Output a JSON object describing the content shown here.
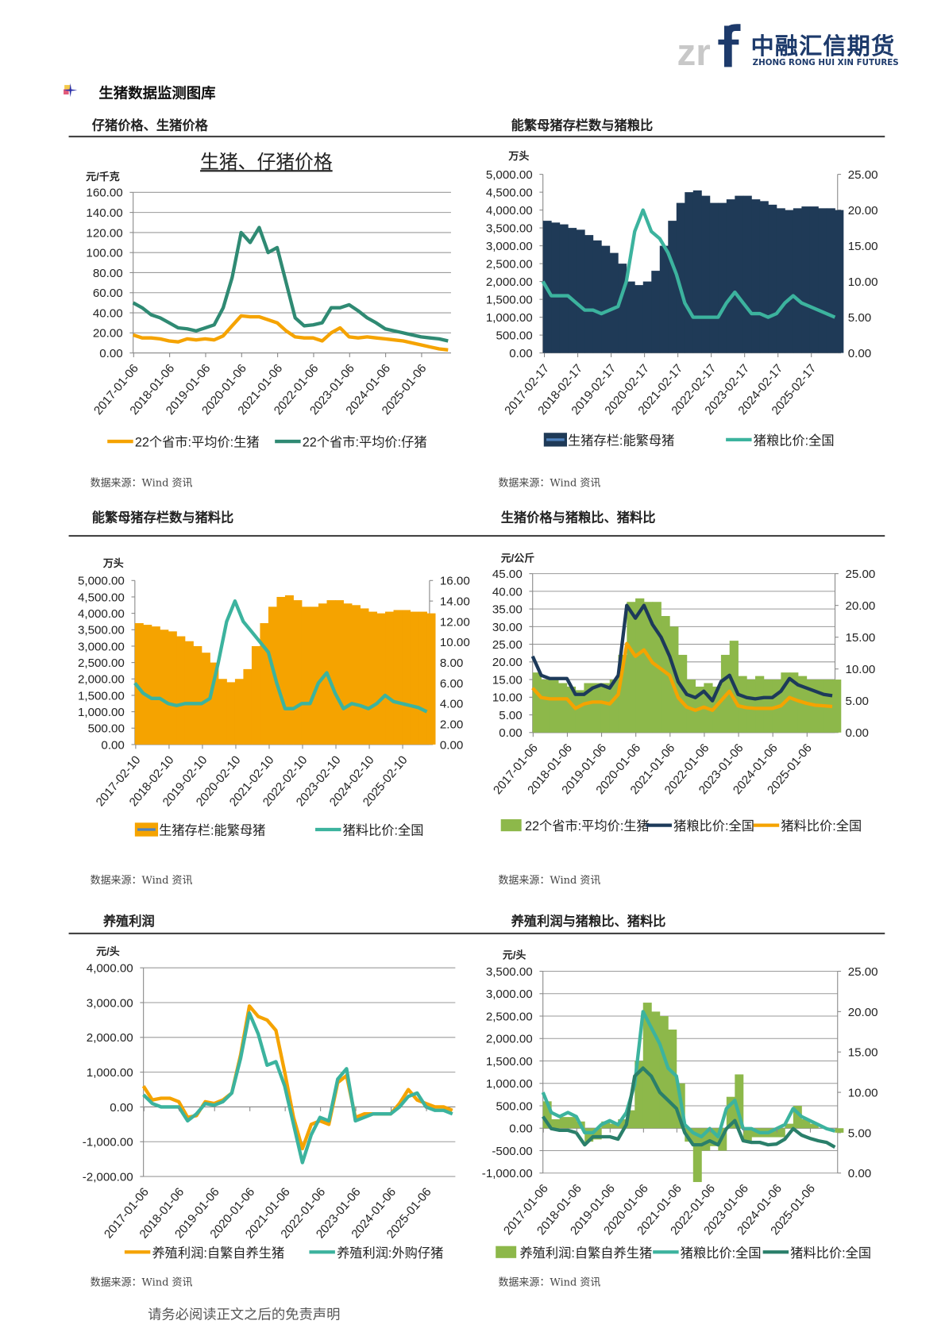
{
  "header": {
    "logo_mark": "zrf",
    "logo_cn": "中融汇信期货",
    "logo_en": "ZHONG RONG HUI XIN FUTURES",
    "section_title": "生猪数据监测图库",
    "bullet_icon": "four-point-star-icon"
  },
  "panels": [
    {
      "heading": "仔猪价格、生猪价格",
      "source": "数据来源：Wind 资讯"
    },
    {
      "heading": "能繁母猪存栏数与猪粮比",
      "source": "数据来源：Wind 资讯"
    },
    {
      "heading": "能繁母猪存栏数与猪料比",
      "source": "数据来源：Wind 资讯"
    },
    {
      "heading": "生猪价格与猪粮比、猪料比",
      "source": "数据来源：Wind 资讯"
    },
    {
      "heading": "养殖利润",
      "source": "数据来源：Wind 资讯"
    },
    {
      "heading": "养殖利润与猪粮比、猪料比",
      "source": "数据来源：Wind 资讯"
    }
  ],
  "footer": {
    "disclaimer": "请务必阅读正文之后的免责声明"
  },
  "chart_data": [
    {
      "type": "line",
      "title": "生猪、仔猪价格",
      "ylabel": "元/千克",
      "ylim": [
        0,
        160
      ],
      "yticks": [
        0,
        20,
        40,
        60,
        80,
        100,
        120,
        140,
        160
      ],
      "grid": true,
      "legend": "bottom",
      "x_ticks": [
        "2017-01-06",
        "2018-01-06",
        "2019-01-06",
        "2020-01-06",
        "2021-01-06",
        "2022-01-06",
        "2023-01-06",
        "2024-01-06",
        "2025-01-06"
      ],
      "x": [
        "2017-01",
        "2017-04",
        "2017-07",
        "2017-10",
        "2018-01",
        "2018-04",
        "2018-07",
        "2018-10",
        "2019-01",
        "2019-04",
        "2019-07",
        "2019-10",
        "2020-01",
        "2020-04",
        "2020-07",
        "2020-10",
        "2021-01",
        "2021-04",
        "2021-07",
        "2021-10",
        "2022-01",
        "2022-04",
        "2022-07",
        "2022-10",
        "2023-01",
        "2023-04",
        "2023-07",
        "2023-10",
        "2024-01",
        "2024-04",
        "2024-07",
        "2024-10",
        "2025-01",
        "2025-04",
        "2025-07",
        "2025-10"
      ],
      "series": [
        {
          "name": "22个省市:平均价:生猪",
          "color": "#f5a300",
          "axis": "left",
          "kind": "line",
          "values": [
            18,
            15,
            15,
            14,
            12,
            11,
            14,
            13,
            14,
            13,
            17,
            27,
            37,
            36,
            36,
            33,
            30,
            22,
            16,
            15,
            15,
            12,
            20,
            25,
            16,
            15,
            16,
            15,
            14,
            13,
            12,
            10,
            8,
            6,
            4,
            3
          ]
        },
        {
          "name": "22个省市:平均价:仔猪",
          "color": "#2f8a73",
          "axis": "left",
          "kind": "line",
          "values": [
            50,
            45,
            38,
            35,
            30,
            25,
            24,
            22,
            25,
            28,
            45,
            75,
            120,
            110,
            125,
            100,
            105,
            70,
            35,
            27,
            28,
            30,
            45,
            45,
            48,
            42,
            35,
            30,
            24,
            22,
            20,
            18,
            16,
            15,
            14,
            12
          ]
        }
      ]
    },
    {
      "type": "bar+line",
      "ylabel": "万头",
      "ylim": [
        0,
        5000
      ],
      "yticks": [
        0,
        500,
        1000,
        1500,
        2000,
        2500,
        3000,
        3500,
        4000,
        4500,
        5000
      ],
      "y2lim": [
        0,
        25
      ],
      "y2ticks": [
        0,
        5,
        10,
        15,
        20,
        25
      ],
      "grid": false,
      "legend": "bottom",
      "x_ticks": [
        "2017-02-17",
        "2018-02-17",
        "2019-02-17",
        "2020-02-17",
        "2021-02-17",
        "2022-02-17",
        "2023-02-17",
        "2024-02-17",
        "2025-02-17"
      ],
      "x": [
        "2017-02",
        "2017-05",
        "2017-08",
        "2017-11",
        "2018-02",
        "2018-05",
        "2018-08",
        "2018-11",
        "2019-02",
        "2019-05",
        "2019-08",
        "2019-11",
        "2020-02",
        "2020-05",
        "2020-08",
        "2020-11",
        "2021-02",
        "2021-05",
        "2021-08",
        "2021-11",
        "2022-02",
        "2022-05",
        "2022-08",
        "2022-11",
        "2023-02",
        "2023-05",
        "2023-08",
        "2023-11",
        "2024-02",
        "2024-05",
        "2024-08",
        "2024-11",
        "2025-02",
        "2025-05",
        "2025-08",
        "2025-11"
      ],
      "series": [
        {
          "name": "生猪存栏:能繁母猪",
          "color": "#1f3a57",
          "axis": "left",
          "kind": "bar",
          "values": [
            3700,
            3650,
            3600,
            3500,
            3450,
            3300,
            3150,
            3000,
            2800,
            2500,
            2000,
            1900,
            2000,
            2300,
            3000,
            3700,
            4200,
            4500,
            4550,
            4400,
            4200,
            4200,
            4300,
            4400,
            4400,
            4300,
            4250,
            4150,
            4050,
            4000,
            4050,
            4100,
            4100,
            4050,
            4050,
            4000
          ]
        },
        {
          "name": "猪粮比价:全国",
          "color": "#3cb39e",
          "axis": "right",
          "kind": "line",
          "values": [
            10,
            8,
            8,
            8,
            7,
            6,
            6,
            5.5,
            6,
            6.5,
            10,
            17,
            20,
            17,
            16,
            14,
            11,
            7,
            5,
            5,
            5,
            5,
            7,
            8.5,
            7,
            5.5,
            5.5,
            5,
            5.5,
            7,
            8,
            7,
            6.5,
            6,
            5.5,
            5
          ]
        }
      ]
    },
    {
      "type": "bar+line",
      "ylabel": "万头",
      "ylim": [
        0,
        5000
      ],
      "yticks": [
        0,
        500,
        1000,
        1500,
        2000,
        2500,
        3000,
        3500,
        4000,
        4500,
        5000
      ],
      "y2lim": [
        0,
        16
      ],
      "y2ticks": [
        0,
        2,
        4,
        6,
        8,
        10,
        12,
        14,
        16
      ],
      "grid": false,
      "legend": "bottom",
      "x_ticks": [
        "2017-02-10",
        "2018-02-10",
        "2019-02-10",
        "2020-02-10",
        "2021-02-10",
        "2022-02-10",
        "2023-02-10",
        "2024-02-10",
        "2025-02-10"
      ],
      "x": [
        "2017-02",
        "2017-05",
        "2017-08",
        "2017-11",
        "2018-02",
        "2018-05",
        "2018-08",
        "2018-11",
        "2019-02",
        "2019-05",
        "2019-08",
        "2019-11",
        "2020-02",
        "2020-05",
        "2020-08",
        "2020-11",
        "2021-02",
        "2021-05",
        "2021-08",
        "2021-11",
        "2022-02",
        "2022-05",
        "2022-08",
        "2022-11",
        "2023-02",
        "2023-05",
        "2023-08",
        "2023-11",
        "2024-02",
        "2024-05",
        "2024-08",
        "2024-11",
        "2025-02",
        "2025-05",
        "2025-08",
        "2025-11"
      ],
      "series": [
        {
          "name": "生猪存栏:能繁母猪",
          "color": "#f5a300",
          "axis": "left",
          "kind": "bar",
          "values": [
            3700,
            3650,
            3600,
            3500,
            3450,
            3300,
            3150,
            3000,
            2800,
            2500,
            2000,
            1900,
            2000,
            2300,
            3000,
            3700,
            4200,
            4500,
            4550,
            4400,
            4200,
            4200,
            4300,
            4400,
            4400,
            4300,
            4250,
            4150,
            4050,
            4000,
            4050,
            4100,
            4100,
            4050,
            4050,
            4000
          ]
        },
        {
          "name": "猪料比价:全国",
          "color": "#3cb39e",
          "axis": "right",
          "kind": "line",
          "values": [
            6,
            5,
            4.5,
            4.5,
            4,
            3.8,
            4,
            4,
            4,
            4.5,
            8,
            12,
            14,
            12,
            11,
            10,
            9,
            6,
            3.5,
            3.5,
            4,
            4,
            6,
            7,
            5,
            3.5,
            4,
            3.8,
            3.5,
            4,
            4.8,
            4.2,
            4,
            3.8,
            3.6,
            3.2
          ]
        }
      ]
    },
    {
      "type": "bar+line",
      "ylabel": "元/公斤",
      "ylim": [
        0,
        45
      ],
      "yticks": [
        0,
        5,
        10,
        15,
        20,
        25,
        30,
        35,
        40,
        45
      ],
      "y2lim": [
        0,
        25
      ],
      "y2ticks": [
        0,
        5,
        10,
        15,
        20,
        25
      ],
      "grid": true,
      "legend": "bottom",
      "x_ticks": [
        "2017-01-06",
        "2018-01-06",
        "2019-01-06",
        "2020-01-06",
        "2021-01-06",
        "2022-01-06",
        "2023-01-06",
        "2024-01-06",
        "2025-01-06"
      ],
      "x": [
        "2017-01",
        "2017-04",
        "2017-07",
        "2017-10",
        "2018-01",
        "2018-04",
        "2018-07",
        "2018-10",
        "2019-01",
        "2019-04",
        "2019-07",
        "2019-10",
        "2020-01",
        "2020-04",
        "2020-07",
        "2020-10",
        "2021-01",
        "2021-04",
        "2021-07",
        "2021-10",
        "2022-01",
        "2022-04",
        "2022-07",
        "2022-10",
        "2023-01",
        "2023-04",
        "2023-07",
        "2023-10",
        "2024-01",
        "2024-04",
        "2024-07",
        "2024-10",
        "2025-01",
        "2025-04",
        "2025-07",
        "2025-10"
      ],
      "series": [
        {
          "name": "22个省市:平均价:生猪",
          "color": "#8db84a",
          "axis": "left",
          "kind": "bar",
          "values": [
            17,
            15,
            15,
            14,
            13,
            12,
            14,
            14,
            14,
            15,
            22,
            37,
            38,
            37,
            37,
            33,
            30,
            22,
            15,
            13,
            14,
            13,
            22,
            26,
            16,
            15,
            16,
            15,
            15,
            17,
            17,
            16,
            15,
            15,
            15,
            15
          ]
        },
        {
          "name": "猪粮比价:全国",
          "color": "#1d3a5a",
          "axis": "right",
          "kind": "line",
          "values": [
            12,
            9,
            8.5,
            8.5,
            8.5,
            6,
            6,
            7,
            7.5,
            7,
            9,
            20,
            18,
            20,
            17,
            15,
            12,
            8,
            6,
            5.5,
            6.5,
            5,
            8,
            9,
            6,
            5.5,
            5.3,
            5.5,
            5.5,
            6.5,
            8.5,
            7.5,
            7,
            6.5,
            6,
            5.8
          ]
        },
        {
          "name": "猪料比价:全国",
          "color": "#f5a300",
          "axis": "right",
          "kind": "line",
          "values": [
            7,
            5.5,
            5.3,
            5.3,
            5.3,
            3.8,
            4.5,
            4.8,
            4.8,
            4.5,
            6,
            14,
            12,
            13,
            11,
            10,
            9,
            5.5,
            4,
            3.5,
            4,
            3.5,
            5,
            6.5,
            4.2,
            3.9,
            3.8,
            3.8,
            3.8,
            4.2,
            5.5,
            5,
            4.6,
            4.3,
            4.2,
            4.1
          ]
        }
      ]
    },
    {
      "type": "line",
      "ylabel": "元/头",
      "ylim": [
        -2000,
        4000
      ],
      "yticks": [
        -2000,
        -1000,
        0,
        1000,
        2000,
        3000,
        4000
      ],
      "grid": true,
      "legend": "bottom",
      "x_ticks": [
        "2017-01-06",
        "2018-01-06",
        "2019-01-06",
        "2020-01-06",
        "2021-01-06",
        "2022-01-06",
        "2023-01-06",
        "2024-01-06",
        "2025-01-06"
      ],
      "x": [
        "2017-01",
        "2017-04",
        "2017-07",
        "2017-10",
        "2018-01",
        "2018-04",
        "2018-07",
        "2018-10",
        "2019-01",
        "2019-04",
        "2019-07",
        "2019-10",
        "2020-01",
        "2020-04",
        "2020-07",
        "2020-10",
        "2021-01",
        "2021-04",
        "2021-07",
        "2021-10",
        "2022-01",
        "2022-04",
        "2022-07",
        "2022-10",
        "2023-01",
        "2023-04",
        "2023-07",
        "2023-10",
        "2024-01",
        "2024-04",
        "2024-07",
        "2024-10",
        "2025-01",
        "2025-04",
        "2025-07",
        "2025-10"
      ],
      "series": [
        {
          "name": "养殖利润:自繁自养生猪",
          "color": "#f5a300",
          "axis": "left",
          "kind": "line",
          "values": [
            600,
            200,
            250,
            250,
            150,
            -300,
            -250,
            150,
            100,
            200,
            400,
            1500,
            2900,
            2600,
            2500,
            2200,
            1000,
            -300,
            -1200,
            -500,
            -400,
            -500,
            700,
            900,
            -300,
            -200,
            -200,
            -200,
            -200,
            100,
            500,
            200,
            100,
            0,
            0,
            -100
          ]
        },
        {
          "name": "养殖利润:外购仔猪",
          "color": "#3cb39e",
          "axis": "left",
          "kind": "line",
          "values": [
            350,
            100,
            0,
            0,
            0,
            -400,
            -200,
            100,
            50,
            150,
            400,
            1400,
            2700,
            2100,
            1200,
            1300,
            600,
            -500,
            -1600,
            -800,
            -300,
            -400,
            800,
            1100,
            -400,
            -300,
            -200,
            -200,
            -200,
            0,
            300,
            400,
            0,
            -100,
            -100,
            -200
          ]
        }
      ]
    },
    {
      "type": "bar+line",
      "ylabel": "元/头",
      "ylim": [
        -1000,
        3500
      ],
      "yticks": [
        -1000,
        -500,
        0,
        500,
        1000,
        1500,
        2000,
        2500,
        3000,
        3500
      ],
      "y2lim": [
        0,
        25
      ],
      "y2ticks": [
        0,
        5,
        10,
        15,
        20,
        25
      ],
      "grid": true,
      "legend": "bottom",
      "x_ticks": [
        "2017-01-06",
        "2018-01-06",
        "2019-01-06",
        "2020-01-06",
        "2021-01-06",
        "2022-01-06",
        "2023-01-06",
        "2024-01-06",
        "2025-01-06"
      ],
      "x": [
        "2017-01",
        "2017-04",
        "2017-07",
        "2017-10",
        "2018-01",
        "2018-04",
        "2018-07",
        "2018-10",
        "2019-01",
        "2019-04",
        "2019-07",
        "2019-10",
        "2020-01",
        "2020-04",
        "2020-07",
        "2020-10",
        "2021-01",
        "2021-04",
        "2021-07",
        "2021-10",
        "2022-01",
        "2022-04",
        "2022-07",
        "2022-10",
        "2023-01",
        "2023-04",
        "2023-07",
        "2023-10",
        "2024-01",
        "2024-04",
        "2024-07",
        "2024-10",
        "2025-01",
        "2025-04",
        "2025-07",
        "2025-10"
      ],
      "series": [
        {
          "name": "养殖利润:自繁自养生猪",
          "color": "#8db84a",
          "axis": "left",
          "kind": "bar",
          "values": [
            600,
            200,
            250,
            250,
            150,
            -300,
            -250,
            150,
            100,
            200,
            400,
            1500,
            2800,
            2600,
            2500,
            2200,
            1000,
            -300,
            -1200,
            -500,
            -400,
            -500,
            700,
            1200,
            -300,
            -200,
            -200,
            -200,
            -200,
            100,
            500,
            200,
            100,
            0,
            0,
            -100
          ]
        },
        {
          "name": "猪粮比价:全国",
          "color": "#3cb39e",
          "axis": "right",
          "kind": "line",
          "values": [
            10,
            7.5,
            7,
            7.5,
            7,
            5,
            5,
            6,
            6.5,
            6,
            7.5,
            11,
            20,
            18,
            16,
            13,
            12,
            6,
            5,
            4.5,
            5.5,
            4.5,
            8,
            9,
            5.5,
            5.5,
            5,
            5,
            5.5,
            6,
            8,
            7,
            6.5,
            6,
            5.5,
            5.2
          ]
        },
        {
          "name": "猪料比价:全国",
          "color": "#2a7f6a",
          "axis": "right",
          "kind": "line",
          "values": [
            7,
            5.5,
            5.3,
            5.3,
            5,
            3.5,
            4.5,
            4.5,
            4.5,
            4.2,
            6,
            12,
            13,
            12,
            10,
            9,
            8,
            5,
            3.5,
            3.5,
            4,
            3.5,
            5.5,
            6.5,
            4,
            3.8,
            3.8,
            3.5,
            3.6,
            4.2,
            5.5,
            4.7,
            4.3,
            4,
            3.8,
            3.2
          ]
        }
      ]
    }
  ]
}
